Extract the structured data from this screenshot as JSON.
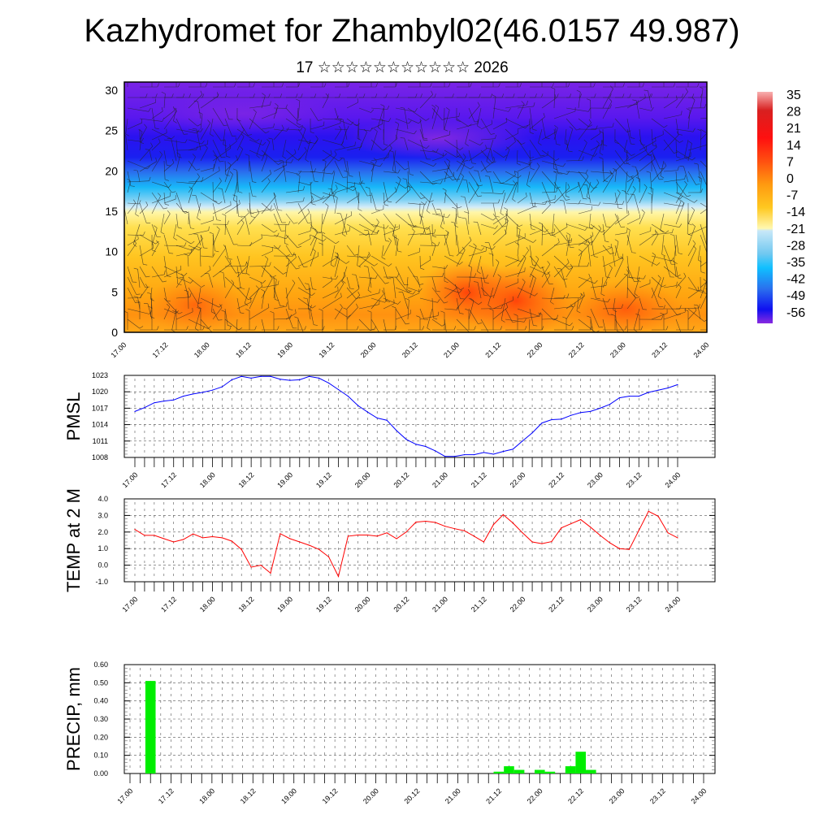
{
  "title": "Kazhydromet for Zhambyl02(46.0157 49.987)",
  "subtitle": "17 ☆☆☆☆☆☆☆☆☆☆☆ 2026",
  "x_labels": [
    "17.00",
    "17.12",
    "18.00",
    "18.12",
    "19.00",
    "19.12",
    "20.00",
    "20.12",
    "21.00",
    "21.12",
    "22.00",
    "22.12",
    "23.00",
    "23.12",
    "24.00"
  ],
  "chart_data": [
    {
      "type": "heatmap",
      "title": "Temperature cross-section with wind barbs",
      "ylabel": "",
      "ylim": [
        0,
        31
      ],
      "yticks": [
        0,
        5,
        10,
        15,
        20,
        25,
        30
      ],
      "colorbar": {
        "labels": [
          "35",
          "28",
          "21",
          "14",
          "7",
          "0",
          "-7",
          "-14",
          "-21",
          "-28",
          "-35",
          "-42",
          "-49",
          "-56"
        ],
        "colors": [
          "#f8a0a0",
          "#d01010",
          "#ff1010",
          "#ff5010",
          "#ff9a10",
          "#ffc020",
          "#ffe870",
          "#c8e8f8",
          "#80c8f0",
          "#10c0ff",
          "#2090f0",
          "#2060e8",
          "#1010f0",
          "#8020e0"
        ]
      }
    },
    {
      "type": "line",
      "ylabel": "PMSL",
      "ylim": [
        1008,
        1023
      ],
      "yticks": [
        "1023",
        "1020",
        "1017",
        "1014",
        "1011",
        "1008"
      ],
      "color": "#0000ff",
      "step_hours": 3,
      "values": [
        1016.4,
        1017.1,
        1018.0,
        1018.3,
        1018.5,
        1019.2,
        1019.6,
        1019.9,
        1020.3,
        1020.9,
        1022.2,
        1022.8,
        1022.5,
        1022.8,
        1022.8,
        1022.3,
        1022.1,
        1022.2,
        1022.8,
        1022.5,
        1021.6,
        1020.4,
        1019.2,
        1017.5,
        1016.3,
        1015.2,
        1014.8,
        1012.9,
        1011.3,
        1010.4,
        1010.0,
        1009.2,
        1008.2,
        1008.2,
        1008.5,
        1008.5,
        1008.9,
        1008.6,
        1009.1,
        1009.5,
        1011.0,
        1012.5,
        1014.3,
        1014.9,
        1015.0,
        1015.7,
        1016.2,
        1016.4,
        1017.0,
        1017.7,
        1018.9,
        1019.2,
        1019.2,
        1019.9,
        1020.3,
        1020.7,
        1021.3
      ]
    },
    {
      "type": "line",
      "ylabel": "TEMP at 2 M",
      "ylim": [
        -1.0,
        4.0
      ],
      "yticks": [
        "4.0",
        "3.0",
        "2.0",
        "1.0",
        "0.0",
        "-1.0"
      ],
      "color": "#ff0000",
      "step_hours": 3,
      "values": [
        2.15,
        1.8,
        1.8,
        1.6,
        1.4,
        1.55,
        1.88,
        1.65,
        1.72,
        1.65,
        1.45,
        0.95,
        -0.12,
        0.0,
        -0.48,
        1.9,
        1.6,
        1.4,
        1.2,
        0.95,
        0.5,
        -0.68,
        1.75,
        1.82,
        1.82,
        1.75,
        1.95,
        1.6,
        2.0,
        2.6,
        2.65,
        2.58,
        2.35,
        2.2,
        2.08,
        1.75,
        1.4,
        2.45,
        3.05,
        2.55,
        1.95,
        1.4,
        1.3,
        1.42,
        2.25,
        2.5,
        2.75,
        2.3,
        1.8,
        1.35,
        1.0,
        0.95,
        2.1,
        3.25,
        2.95,
        1.95,
        1.65
      ]
    },
    {
      "type": "bar",
      "ylabel": "PRECIP, mm",
      "ylim": [
        0,
        0.6
      ],
      "yticks": [
        "0.60",
        "0.50",
        "0.40",
        "0.30",
        "0.20",
        "0.10",
        "0.00"
      ],
      "color": "#00ee00",
      "step_hours": 3,
      "bars": [
        {
          "index": 2,
          "value": 0.51
        },
        {
          "index": 36,
          "value": 0.01
        },
        {
          "index": 37,
          "value": 0.04
        },
        {
          "index": 38,
          "value": 0.02
        },
        {
          "index": 40,
          "value": 0.02
        },
        {
          "index": 41,
          "value": 0.01
        },
        {
          "index": 43,
          "value": 0.04
        },
        {
          "index": 44,
          "value": 0.12
        },
        {
          "index": 45,
          "value": 0.02
        }
      ]
    }
  ]
}
